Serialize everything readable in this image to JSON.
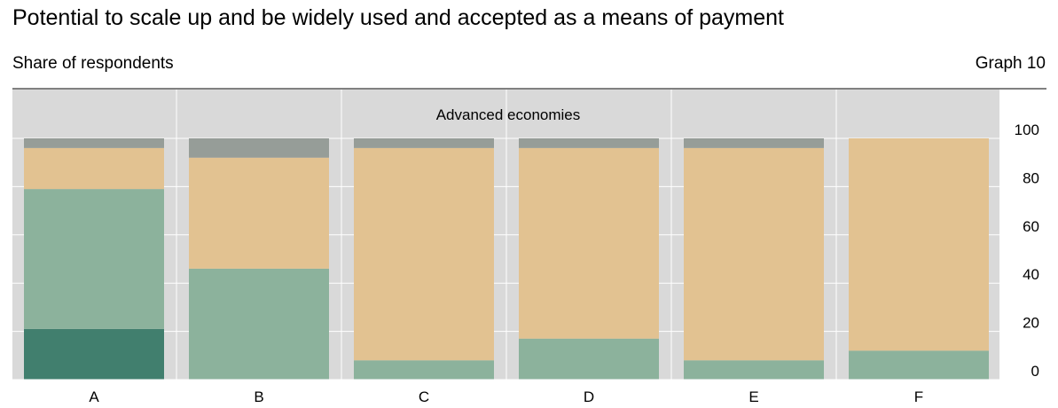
{
  "header": {
    "title": "Potential to scale up and be widely used and accepted as a means of payment",
    "subtitle": "Share of respondents",
    "graph_number": "Graph 10"
  },
  "colors": {
    "panel_background": "#d9d9d9",
    "gridline": "#ffffff",
    "series": [
      "#417f6e",
      "#8cb29c",
      "#e2c291",
      "#969d98"
    ]
  },
  "chart_data": {
    "type": "bar",
    "stacked": true,
    "panel_label": "Advanced economies",
    "categories": [
      "A",
      "B",
      "C",
      "D",
      "E",
      "F"
    ],
    "series": [
      {
        "values": [
          21,
          0,
          0,
          0,
          0,
          0
        ]
      },
      {
        "values": [
          58,
          46,
          8,
          17,
          8,
          12
        ]
      },
      {
        "values": [
          17,
          46,
          88,
          79,
          88,
          88
        ]
      },
      {
        "values": [
          4,
          8,
          4,
          4,
          4,
          0
        ]
      }
    ],
    "ylim": [
      0,
      100
    ],
    "yticks": [
      "0",
      "20",
      "40",
      "60",
      "80",
      "100"
    ],
    "ytick_values": [
      0,
      20,
      40,
      60,
      80,
      100
    ],
    "grid": true,
    "legend": "none"
  }
}
